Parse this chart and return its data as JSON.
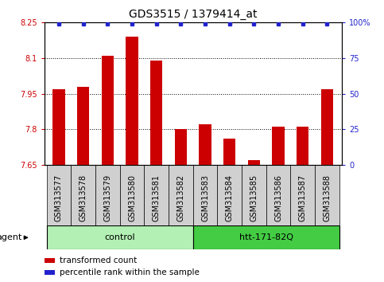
{
  "title": "GDS3515 / 1379414_at",
  "categories": [
    "GSM313577",
    "GSM313578",
    "GSM313579",
    "GSM313580",
    "GSM313581",
    "GSM313582",
    "GSM313583",
    "GSM313584",
    "GSM313585",
    "GSM313586",
    "GSM313587",
    "GSM313588"
  ],
  "bar_values": [
    7.97,
    7.98,
    8.11,
    8.19,
    8.09,
    7.8,
    7.82,
    7.76,
    7.67,
    7.81,
    7.81,
    7.97
  ],
  "percentile_values": [
    99,
    99,
    99,
    99,
    99,
    99,
    99,
    99,
    99,
    99,
    99,
    99
  ],
  "bar_color": "#cc0000",
  "dot_color": "#2222cc",
  "ylim_left": [
    7.65,
    8.25
  ],
  "ylim_right": [
    0,
    100
  ],
  "yticks_left": [
    7.65,
    7.8,
    7.95,
    8.1,
    8.25
  ],
  "ytick_labels_left": [
    "7.65",
    "7.8",
    "7.95",
    "8.1",
    "8.25"
  ],
  "yticks_right": [
    0,
    25,
    50,
    75,
    100
  ],
  "ytick_labels_right": [
    "0",
    "25",
    "50",
    "75",
    "100%"
  ],
  "hgrid_values": [
    7.8,
    7.95,
    8.1
  ],
  "groups": [
    {
      "label": "control",
      "start": 0,
      "end": 6,
      "color": "#b3f0b3"
    },
    {
      "label": "htt-171-82Q",
      "start": 6,
      "end": 12,
      "color": "#44cc44"
    }
  ],
  "agent_label": "agent",
  "background_color": "#ffffff",
  "bar_width": 0.5,
  "tick_label_fontsize": 7.0,
  "title_fontsize": 10,
  "group_fontsize": 8,
  "legend_fontsize": 7.5
}
